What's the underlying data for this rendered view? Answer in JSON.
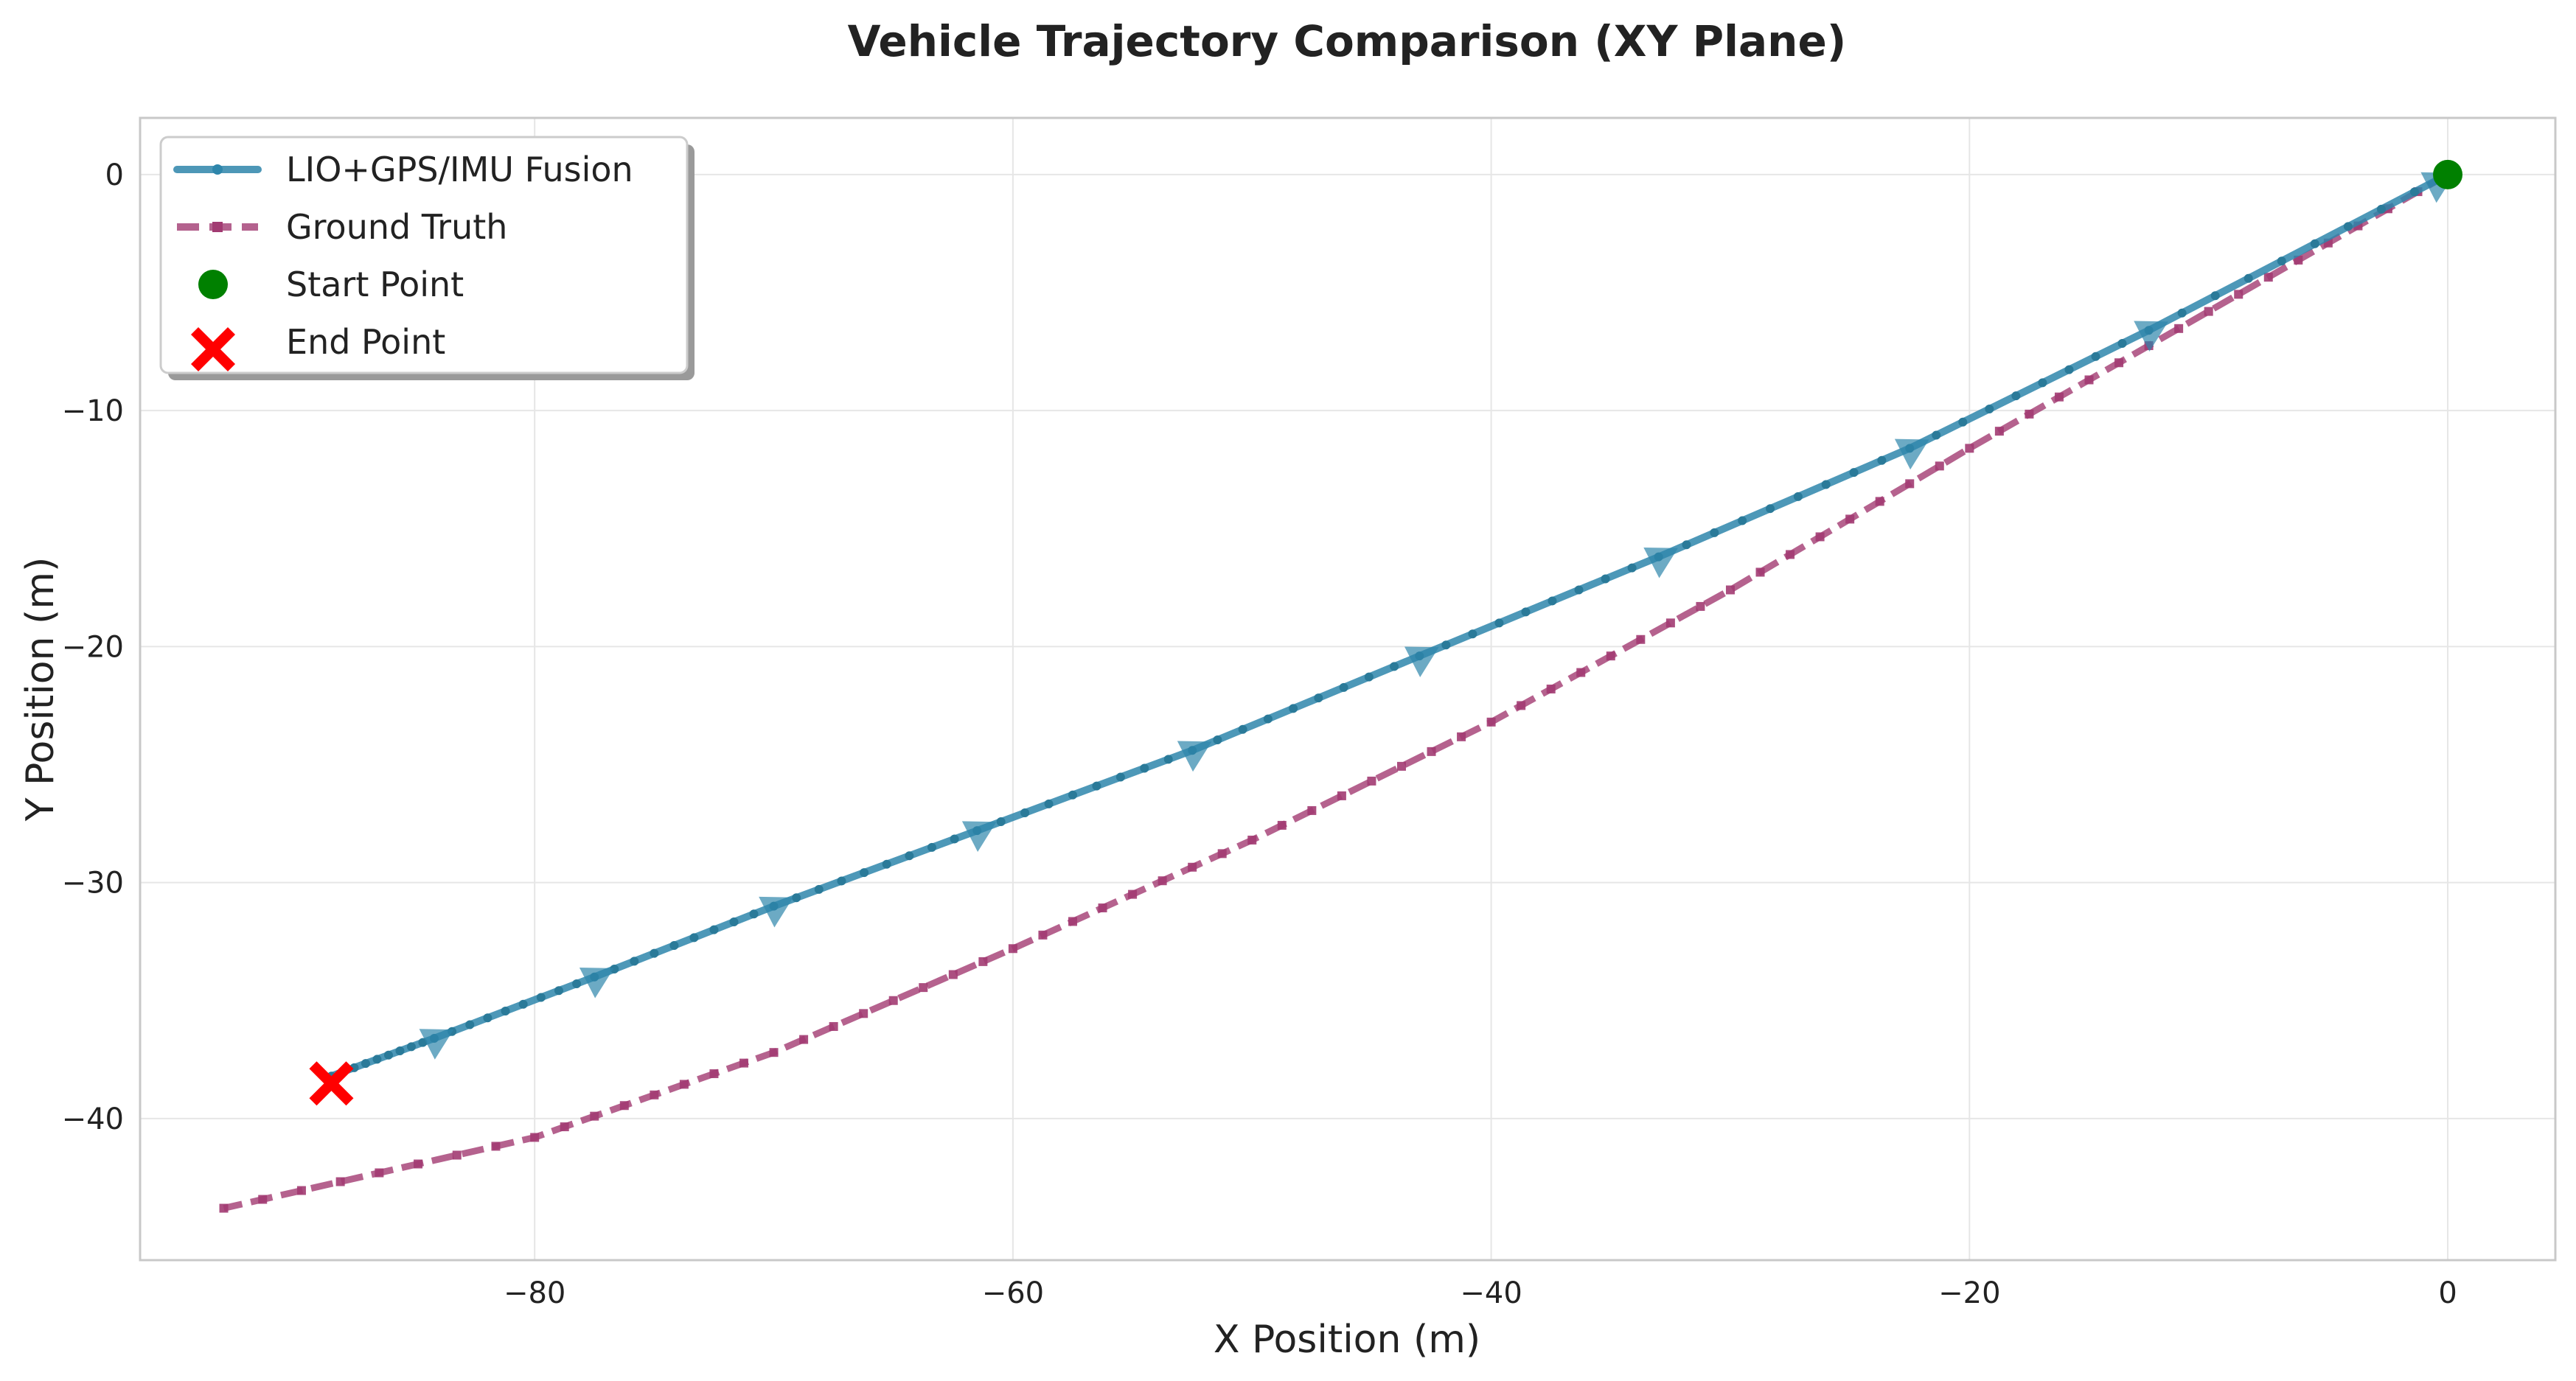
{
  "chart_data": {
    "type": "line",
    "title": "Vehicle Trajectory Comparison (XY Plane)",
    "xlabel": "X Position (m)",
    "ylabel": "Y Position (m)",
    "xlim": [
      -96.5,
      4.5
    ],
    "ylim": [
      -46,
      2.4
    ],
    "xticks": [
      -80,
      -60,
      -40,
      -20,
      0
    ],
    "yticks": [
      0,
      -10,
      -20,
      -30,
      -40
    ],
    "grid": true,
    "legend_position": "top-left",
    "series": [
      {
        "name": "LIO+GPS/IMU Fusion",
        "color": "#2e86ab",
        "style": "solid-dots",
        "x": [
          0,
          -12.5,
          -22.5,
          -33,
          -43,
          -52.5,
          -61.5,
          -70,
          -77.5,
          -84.2,
          -88.5
        ],
        "y": [
          0,
          -6.6,
          -11.6,
          -16.2,
          -20.4,
          -24.4,
          -27.8,
          -31,
          -34,
          -36.6,
          -38.2
        ]
      },
      {
        "name": "Ground Truth",
        "color": "#a23b72",
        "style": "dashed-squares",
        "x": [
          0,
          -10,
          -20,
          -30,
          -40,
          -50,
          -60,
          -70,
          -80,
          -93
        ],
        "y": [
          0,
          -5.8,
          -11.6,
          -17.6,
          -23.2,
          -28.2,
          -32.8,
          -37.2,
          -40.8,
          -43.8
        ]
      }
    ],
    "direction_markers": {
      "x": [
        -0.5,
        -12.5,
        -22.5,
        -33,
        -43,
        -52.5,
        -61.5,
        -70,
        -77.5,
        -84.2
      ],
      "y": [
        -0.3,
        -6.6,
        -11.6,
        -16.2,
        -20.4,
        -24.4,
        -27.8,
        -31,
        -34,
        -36.6
      ]
    },
    "start_point": {
      "name": "Start Point",
      "x": 0,
      "y": 0,
      "color": "#008000"
    },
    "end_point": {
      "name": "End Point",
      "x": -88.5,
      "y": -38.2,
      "color": "#ff0000"
    }
  }
}
